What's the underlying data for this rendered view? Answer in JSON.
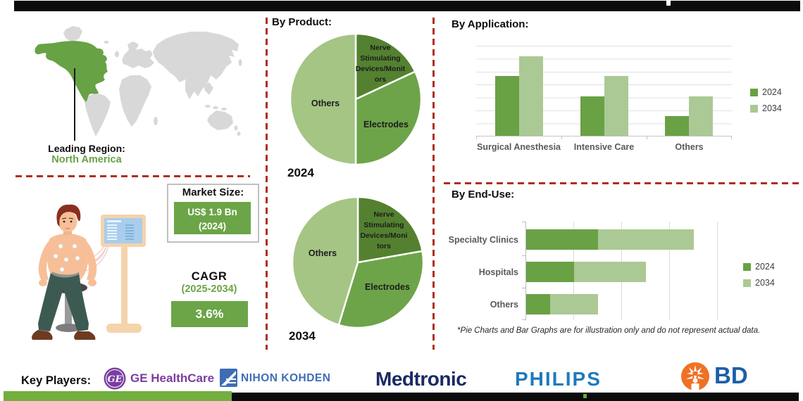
{
  "palette": {
    "accent_green": "#6ba547",
    "bottom_bar_green": "#74ae3e",
    "dark_green": "#54812f",
    "mid_green": "#6da449",
    "light_green": "#a4c584",
    "bar_2024_green": "#69a145",
    "bar_2034_green": "#abc994",
    "dashed_red": "#b02e1d",
    "map_gray": "#d8d8d8",
    "map_highlight_green": "#67a245",
    "top_bar_black": "#0b0b0b"
  },
  "leading_region": {
    "label": "Leading Region:",
    "value": "North America"
  },
  "market_size": {
    "title": "Market Size:",
    "value": "US$ 1.9 Bn",
    "year": "(2024)"
  },
  "cagr": {
    "title": "CAGR",
    "range": "(2025-2034)",
    "value": "3.6%"
  },
  "sections": {
    "by_product": "By Product:",
    "by_application": "By Application:",
    "by_end_use": "By End-Use:"
  },
  "footnote": "*Pie Charts and Bar Graphs are for illustration only and do not represent actual data.",
  "key_players": {
    "label": "Key Players:",
    "companies": [
      {
        "name": "GE HealthCare",
        "color": "#7a3da0"
      },
      {
        "name": "NIHON KOHDEN",
        "color": "#3e6db5"
      },
      {
        "name": "Medtronic",
        "color": "#1b2a63"
      },
      {
        "name": "PHILIPS",
        "color": "#1e7abd"
      },
      {
        "name": "BD",
        "color": "#1d5fa6",
        "icon_color": "#ee7125"
      }
    ]
  },
  "chart_data": [
    {
      "id": "by-product-pie-2024",
      "type": "pie",
      "title": "By Product:",
      "year_label": "2024",
      "note": "illustrative only",
      "segments": [
        {
          "label": "Nerve Stimulating Devices/Monitors",
          "label_lines": [
            "Nerve",
            "Stimulating",
            "Devices/Monit",
            "ors"
          ],
          "value_pct": 18,
          "start_deg": 0,
          "end_deg": 65,
          "color": "#54812f"
        },
        {
          "label": "Electrodes",
          "value_pct": 32,
          "start_deg": 65,
          "end_deg": 180,
          "color": "#6da449"
        },
        {
          "label": "Others",
          "value_pct": 50,
          "start_deg": 180,
          "end_deg": 360,
          "color": "#a4c584"
        }
      ]
    },
    {
      "id": "by-product-pie-2034",
      "type": "pie",
      "title": "By Product:",
      "year_label": "2034",
      "note": "illustrative only",
      "segments": [
        {
          "label": "Nerve Stimulating Devices/Monitors",
          "label_lines": [
            "Nerve",
            "Stimulating",
            "Devices/Moni",
            "tors"
          ],
          "value_pct": 22,
          "start_deg": 0,
          "end_deg": 80,
          "color": "#54812f"
        },
        {
          "label": "Electrodes",
          "value_pct": 33,
          "start_deg": 80,
          "end_deg": 197,
          "color": "#6da449"
        },
        {
          "label": "Others",
          "value_pct": 45,
          "start_deg": 197,
          "end_deg": 360,
          "color": "#a4c584"
        }
      ]
    },
    {
      "id": "by-application",
      "type": "bar",
      "title": "By Application:",
      "categories": [
        "Surgical Anesthesia",
        "Intensive Care",
        "Others"
      ],
      "series": [
        {
          "name": "2024",
          "color": "#69a145",
          "values": [
            3,
            2,
            1
          ]
        },
        {
          "name": "2034",
          "color": "#abc994",
          "values": [
            4,
            3,
            2
          ]
        }
      ],
      "ylim": [
        0,
        4.6
      ],
      "grid": "horizontal",
      "legend_position": "right",
      "note": "relative illustrative units"
    },
    {
      "id": "by-end-use",
      "type": "bar-horizontal-stacked",
      "title": "By End-Use:",
      "categories": [
        "Specialty Clinics",
        "Hospitals",
        "Others"
      ],
      "series": [
        {
          "name": "2024",
          "color": "#69a145",
          "values": [
            1.5,
            1,
            0.5
          ]
        },
        {
          "name": "2034",
          "color": "#abc994",
          "values": [
            2,
            1.5,
            1
          ]
        }
      ],
      "xlim": [
        0,
        4.3
      ],
      "grid": "vertical",
      "legend_position": "right",
      "note": "relative illustrative units"
    }
  ]
}
